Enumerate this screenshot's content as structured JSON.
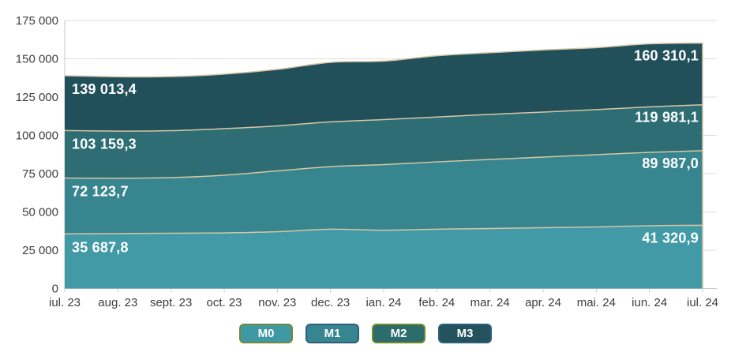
{
  "chart_data": {
    "type": "area",
    "title": "",
    "xlabel": "",
    "ylabel": "",
    "ylim": [
      0,
      175000
    ],
    "grid": true,
    "legend_position": "bottom",
    "categories": [
      "iul. 23",
      "aug. 23",
      "sept. 23",
      "oct. 23",
      "nov. 23",
      "dec. 23",
      "ian. 24",
      "feb. 24",
      "mar. 24",
      "apr. 24",
      "mai. 24",
      "iun. 24",
      "iul. 24"
    ],
    "y_axis_labels": [
      "175 000",
      "150 000",
      "125 000",
      "100 000",
      "75 000",
      "50 000",
      "25 000",
      "0"
    ],
    "series": [
      {
        "name": "M0",
        "values": [
          35687.8,
          35900,
          36100,
          36300,
          37100,
          38700,
          38100,
          38700,
          39200,
          39700,
          40200,
          41000,
          41320.9
        ],
        "first_label": "35 687,8",
        "last_label": "41 320,9",
        "fill": "#419aa6",
        "legend_fill": "#3e99a4",
        "legend_border": "#72883b"
      },
      {
        "name": "M1",
        "values": [
          72123.7,
          72000,
          72400,
          74000,
          76800,
          79600,
          80900,
          82700,
          84300,
          85800,
          87400,
          88900,
          89987.0
        ],
        "first_label": "72 123,7",
        "last_label": "89 987,0",
        "fill": "#37858f",
        "legend_fill": "#37858f",
        "legend_border": "#2d5e80"
      },
      {
        "name": "M2",
        "values": [
          103159.3,
          102800,
          103100,
          104400,
          106200,
          108800,
          110300,
          112000,
          113700,
          115200,
          116800,
          118600,
          119981.1
        ],
        "first_label": "103 159,3",
        "last_label": "119 981,1",
        "fill": "#2d6d73",
        "legend_fill": "#2c6c6c",
        "legend_border": "#6e8b28"
      },
      {
        "name": "M3",
        "values": [
          139013.4,
          138300,
          138400,
          140000,
          143100,
          147700,
          148500,
          152000,
          154000,
          155800,
          157300,
          159800,
          160310.1
        ],
        "first_label": "139 013,4",
        "last_label": "160 310,1",
        "fill": "#22505a",
        "legend_fill": "#24525c",
        "legend_border": "#2d5e80"
      }
    ],
    "line_color": "#d7c6a5",
    "axis_color": "#c9c9c9",
    "grid_color": "#dcdcdc",
    "text_color": "#3d3d3d"
  }
}
